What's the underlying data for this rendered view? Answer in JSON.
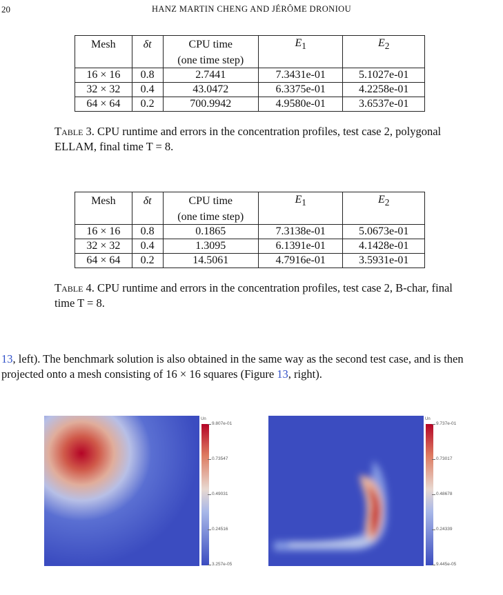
{
  "header": {
    "page_number": "20",
    "running_title": "HANZ MARTIN CHENG AND JÉRÔME DRONIOU"
  },
  "table3": {
    "headers": [
      "Mesh",
      "δt",
      "CPU time",
      "E",
      "E"
    ],
    "cpu_subheader": "(one time step)",
    "rows": [
      [
        "16 × 16",
        "0.8",
        "2.7441",
        "7.3431e-01",
        "5.1027e-01"
      ],
      [
        "32 × 32",
        "0.4",
        "43.0472",
        "6.3375e-01",
        "4.2258e-01"
      ],
      [
        "64 × 64",
        "0.2",
        "700.9942",
        "4.9580e-01",
        "3.6537e-01"
      ]
    ],
    "caption_label": "Table 3.",
    "caption_text": "CPU runtime and errors in the concentration profiles, test case 2, polygonal ELLAM, final time T = 8."
  },
  "table4": {
    "headers": [
      "Mesh",
      "δt",
      "CPU time",
      "E",
      "E"
    ],
    "cpu_subheader": "(one time step)",
    "rows": [
      [
        "16 × 16",
        "0.8",
        "0.1865",
        "7.3138e-01",
        "5.0673e-01"
      ],
      [
        "32 × 32",
        "0.4",
        "1.3095",
        "6.1391e-01",
        "4.1428e-01"
      ],
      [
        "64 × 64",
        "0.2",
        "14.5061",
        "4.7916e-01",
        "3.5931e-01"
      ]
    ],
    "caption_label": "Table 4.",
    "caption_text": "CPU runtime and errors in the concentration profiles, test case 2, B-char, final time T = 8."
  },
  "subscripts": {
    "e1": "1",
    "e2": "2"
  },
  "paragraph": {
    "ref1": "13",
    "text1": ", left). The benchmark solution is also obtained in the same way as the second test case, and is then projected onto a mesh consisting of 16 × 16 squares (Figure ",
    "ref2": "13",
    "text2": ", right)."
  },
  "figure_left": {
    "legend_title": "Un",
    "ticks": [
      "9.807e-01",
      "0.73547",
      "0.49031",
      "0.24516",
      "3.257e-05"
    ]
  },
  "figure_right": {
    "legend_title": "Un",
    "ticks": [
      "9.737e-01",
      "0.73017",
      "0.48678",
      "0.24339",
      "9.445e-05"
    ]
  },
  "colors": {
    "link": "#3050c8",
    "colormap_low": "#3b4cc0",
    "colormap_mid": "#dddddd",
    "colormap_high": "#b40426"
  }
}
